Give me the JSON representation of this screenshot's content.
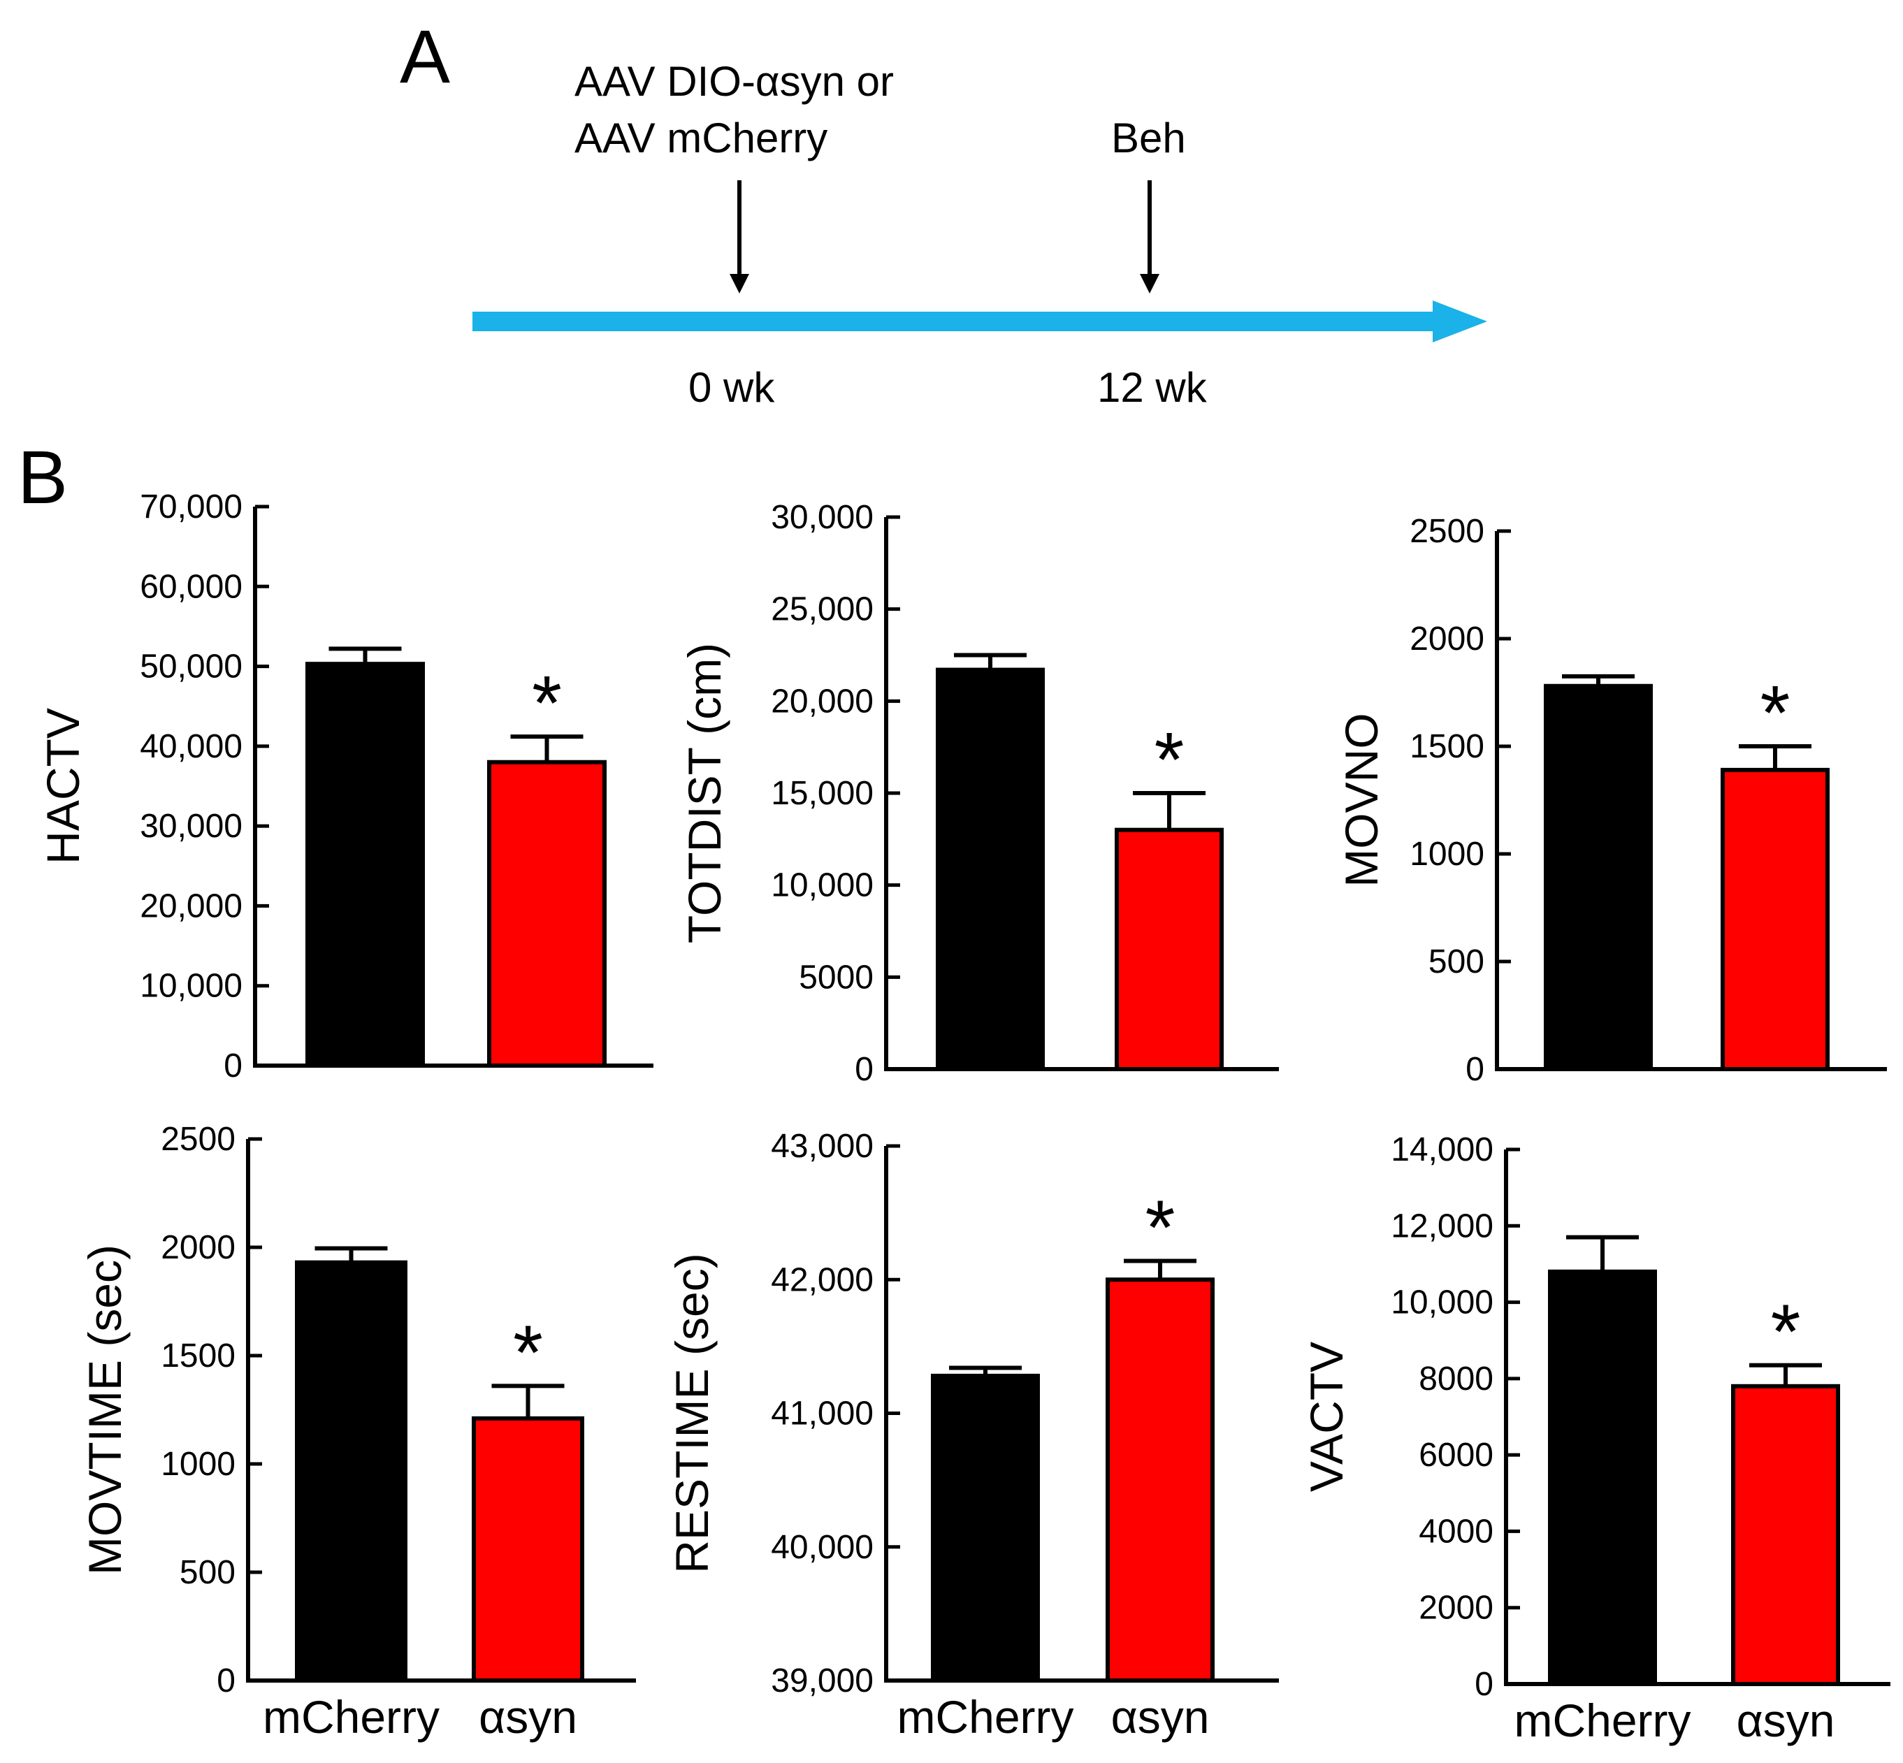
{
  "panel_labels": {
    "a": "A",
    "b": "B"
  },
  "timeline": {
    "injection_line1": "AAV DIO-αsyn or",
    "injection_line2": "AAV mCherry",
    "behavior": "Beh",
    "start_week": "0 wk",
    "end_week": "12 wk",
    "arrow_color": "#1ab2e8"
  },
  "colors": {
    "mCherry": "#000000",
    "asyn": "#ff0000"
  },
  "chart_data": [
    {
      "id": "hactv",
      "type": "bar",
      "ylabel": "HACTV",
      "ylim": [
        0,
        70000
      ],
      "ticks": [
        "0",
        "10,000",
        "20,000",
        "30,000",
        "40,000",
        "50,000",
        "60,000",
        "70,000"
      ],
      "tick_values": [
        0,
        10000,
        20000,
        30000,
        40000,
        50000,
        60000,
        70000
      ],
      "categories": [
        "mCherry",
        "αsyn"
      ],
      "values": [
        50300,
        38000
      ],
      "errors": [
        1900,
        3200
      ],
      "significance": [
        "",
        "*"
      ],
      "show_xlabels": false
    },
    {
      "id": "totdist",
      "type": "bar",
      "ylabel": "TOTDIST (cm)",
      "ylim": [
        0,
        30000
      ],
      "ticks": [
        "0",
        "5000",
        "10,000",
        "15,000",
        "20,000",
        "25,000",
        "30,000"
      ],
      "tick_values": [
        0,
        5000,
        10000,
        15000,
        20000,
        25000,
        30000
      ],
      "categories": [
        "mCherry",
        "αsyn"
      ],
      "values": [
        21700,
        13000
      ],
      "errors": [
        800,
        2000
      ],
      "significance": [
        "",
        "*"
      ],
      "show_xlabels": false
    },
    {
      "id": "movno",
      "type": "bar",
      "ylabel": "MOVNO",
      "ylim": [
        0,
        2500
      ],
      "ticks": [
        "0",
        "500",
        "1000",
        "1500",
        "2000",
        "2500"
      ],
      "tick_values": [
        0,
        500,
        1000,
        1500,
        2000,
        2500
      ],
      "categories": [
        "mCherry",
        "αsyn"
      ],
      "values": [
        1780,
        1390
      ],
      "errors": [
        45,
        110
      ],
      "significance": [
        "",
        "*"
      ],
      "show_xlabels": false
    },
    {
      "id": "movtime",
      "type": "bar",
      "ylabel": "MOVTIME (sec)",
      "ylim": [
        0,
        2500
      ],
      "ticks": [
        "0",
        "500",
        "1000",
        "1500",
        "2000",
        "2500"
      ],
      "tick_values": [
        0,
        500,
        1000,
        1500,
        2000,
        2500
      ],
      "categories": [
        "mCherry",
        "αsyn"
      ],
      "values": [
        1930,
        1210
      ],
      "errors": [
        65,
        150
      ],
      "significance": [
        "",
        "*"
      ],
      "show_xlabels": true
    },
    {
      "id": "restime",
      "type": "bar",
      "ylabel": "RESTIME (sec)",
      "ylim": [
        39000,
        43000
      ],
      "ticks": [
        "39,000",
        "40,000",
        "41,000",
        "42,000",
        "43,000"
      ],
      "tick_values": [
        39000,
        40000,
        41000,
        42000,
        43000
      ],
      "categories": [
        "mCherry",
        "αsyn"
      ],
      "values": [
        41280,
        42000
      ],
      "errors": [
        60,
        140
      ],
      "significance": [
        "",
        "*"
      ],
      "show_xlabels": true
    },
    {
      "id": "vactv",
      "type": "bar",
      "ylabel": "VACTV",
      "ylim": [
        0,
        14000
      ],
      "ticks": [
        "0",
        "2000",
        "4000",
        "6000",
        "8000",
        "10,000",
        "12,000",
        "14,000"
      ],
      "tick_values": [
        0,
        2000,
        4000,
        6000,
        8000,
        10000,
        12000,
        14000
      ],
      "categories": [
        "mCherry",
        "αsyn"
      ],
      "values": [
        10800,
        7800
      ],
      "errors": [
        900,
        550
      ],
      "significance": [
        "",
        "*"
      ],
      "show_xlabels": true
    }
  ]
}
